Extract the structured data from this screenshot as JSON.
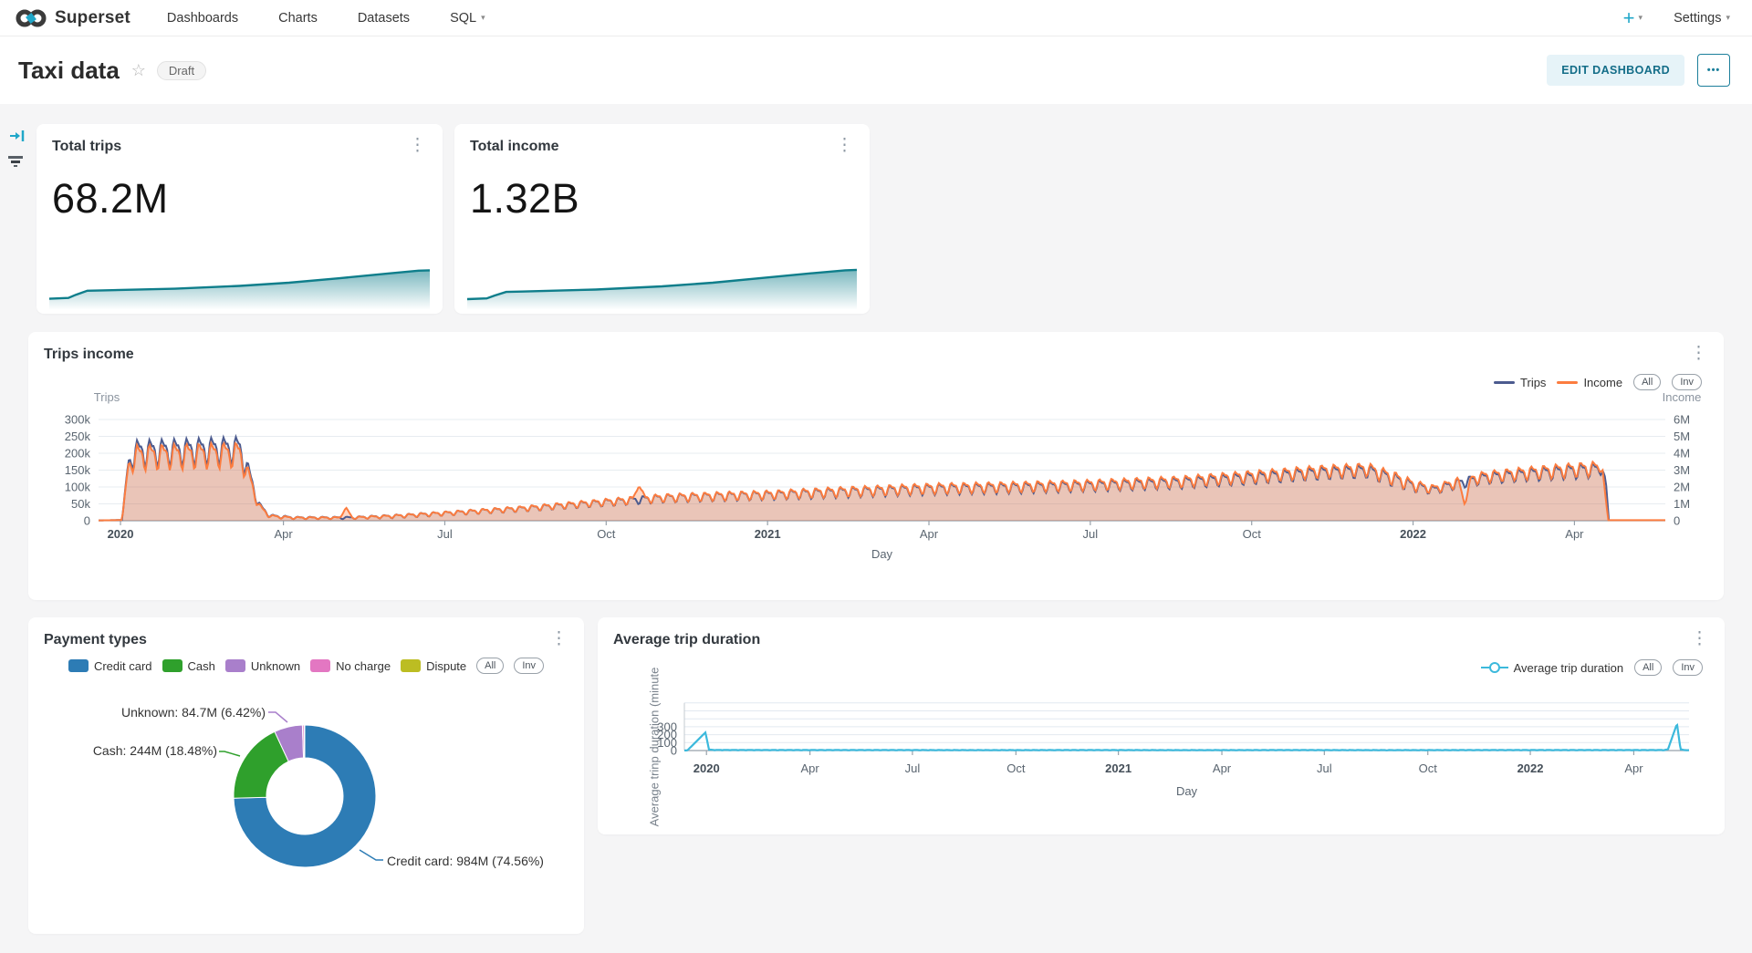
{
  "nav": {
    "brand": "Superset",
    "items": [
      {
        "label": "Dashboards"
      },
      {
        "label": "Charts"
      },
      {
        "label": "Datasets"
      },
      {
        "label": "SQL",
        "caret": true
      }
    ],
    "plus_label": "+",
    "settings_label": "Settings"
  },
  "header": {
    "title": "Taxi data",
    "draft_badge": "Draft",
    "edit_button": "EDIT DASHBOARD"
  },
  "icons": {
    "kebab": "⋮",
    "star": "☆",
    "caret": "▾",
    "more_dots": "•••"
  },
  "colors": {
    "accent": "#20a7c9",
    "trips_line": "#4c5b8f",
    "income_line": "#fc7c3f",
    "spark_teal": "#0f7e8b",
    "avg_line": "#3cb9dc",
    "board_bg": "#f5f5f6"
  },
  "chart_data": [
    {
      "id": "total-trips",
      "type": "area",
      "title": "Total trips",
      "value": "68.2M",
      "color": "#0f7e8b",
      "points": [
        [
          0,
          0.1
        ],
        [
          0.05,
          0.12
        ],
        [
          0.07,
          0.2
        ],
        [
          0.1,
          0.3
        ],
        [
          0.14,
          0.31
        ],
        [
          0.33,
          0.35
        ],
        [
          0.5,
          0.42
        ],
        [
          0.63,
          0.5
        ],
        [
          0.76,
          0.61
        ],
        [
          0.89,
          0.73
        ],
        [
          0.97,
          0.8
        ],
        [
          1,
          0.81
        ]
      ]
    },
    {
      "id": "total-income",
      "type": "area",
      "title": "Total income",
      "value": "1.32B",
      "color": "#0f7e8b",
      "points": [
        [
          0,
          0.09
        ],
        [
          0.05,
          0.11
        ],
        [
          0.07,
          0.18
        ],
        [
          0.1,
          0.27
        ],
        [
          0.14,
          0.28
        ],
        [
          0.33,
          0.33
        ],
        [
          0.5,
          0.41
        ],
        [
          0.63,
          0.5
        ],
        [
          0.76,
          0.62
        ],
        [
          0.89,
          0.74
        ],
        [
          0.97,
          0.81
        ],
        [
          1,
          0.82
        ]
      ]
    },
    {
      "id": "trips-income",
      "type": "line",
      "title": "Trips income",
      "xlabel": "Day",
      "x_ticks": [
        {
          "label": "2020",
          "p": 0.014,
          "bold": true
        },
        {
          "label": "Apr",
          "p": 0.118
        },
        {
          "label": "Jul",
          "p": 0.221
        },
        {
          "label": "Oct",
          "p": 0.324
        },
        {
          "label": "2021",
          "p": 0.427,
          "bold": true
        },
        {
          "label": "Apr",
          "p": 0.53
        },
        {
          "label": "Jul",
          "p": 0.633
        },
        {
          "label": "Oct",
          "p": 0.736
        },
        {
          "label": "2022",
          "p": 0.839,
          "bold": true
        },
        {
          "label": "Apr",
          "p": 0.942
        }
      ],
      "y_left": {
        "name": "Trips",
        "max": 300,
        "ticks": [
          "300k",
          "250k",
          "200k",
          "150k",
          "100k",
          "50k",
          "0"
        ]
      },
      "y_right": {
        "name": "Income",
        "max": 6,
        "ticks": [
          "6M",
          "5M",
          "4M",
          "3M",
          "2M",
          "1M",
          "0"
        ]
      },
      "legend": [
        {
          "label": "Trips",
          "color": "#4c5b8f"
        },
        {
          "label": "Income",
          "color": "#fc7c3f"
        }
      ],
      "buttons": [
        "All",
        "Inv"
      ],
      "osc_freq": 127,
      "series": [
        {
          "name": "Trips",
          "axis": "left",
          "color": "#4c5b8f",
          "fill": "rgba(76,91,143,0.16)",
          "end": 0.964,
          "keypoints": [
            [
              0,
              1,
              0
            ],
            [
              0.015,
              2,
              0
            ],
            [
              0.019,
              170,
              20
            ],
            [
              0.024,
              205,
              45
            ],
            [
              0.09,
              215,
              45
            ],
            [
              0.096,
              140,
              30
            ],
            [
              0.103,
              40,
              15
            ],
            [
              0.11,
              14,
              6
            ],
            [
              0.125,
              9,
              4
            ],
            [
              0.16,
              9,
              4
            ],
            [
              0.19,
              14,
              6
            ],
            [
              0.22,
              22,
              7
            ],
            [
              0.27,
              36,
              9
            ],
            [
              0.323,
              55,
              12
            ],
            [
              0.36,
              68,
              14
            ],
            [
              0.4,
              74,
              15
            ],
            [
              0.427,
              77,
              15
            ],
            [
              0.47,
              85,
              17
            ],
            [
              0.53,
              95,
              18
            ],
            [
              0.59,
              100,
              18
            ],
            [
              0.632,
              105,
              18
            ],
            [
              0.69,
              114,
              19
            ],
            [
              0.735,
              128,
              20
            ],
            [
              0.78,
              143,
              21
            ],
            [
              0.81,
              149,
              22
            ],
            [
              0.828,
              122,
              24
            ],
            [
              0.84,
              103,
              18
            ],
            [
              0.852,
              92,
              14
            ],
            [
              0.868,
              112,
              17
            ],
            [
              0.885,
              128,
              19
            ],
            [
              0.91,
              138,
              21
            ],
            [
              0.941,
              148,
              24
            ],
            [
              0.956,
              152,
              24
            ],
            [
              0.96,
              150,
              10
            ],
            [
              0.962,
              120,
              0
            ],
            [
              0.964,
              0,
              0
            ]
          ]
        },
        {
          "name": "Income",
          "axis": "right",
          "color": "#fc7c3f",
          "fill": "rgba(252,124,63,0.30)",
          "end": 1.0,
          "keypoints": [
            [
              0,
              0.02,
              0
            ],
            [
              0.015,
              0.04,
              0
            ],
            [
              0.019,
              3.2,
              0.4
            ],
            [
              0.024,
              3.85,
              0.85
            ],
            [
              0.09,
              4.0,
              0.85
            ],
            [
              0.096,
              2.6,
              0.55
            ],
            [
              0.103,
              0.75,
              0.28
            ],
            [
              0.11,
              0.26,
              0.11
            ],
            [
              0.125,
              0.17,
              0.07
            ],
            [
              0.16,
              0.17,
              0.07
            ],
            [
              0.19,
              0.28,
              0.11
            ],
            [
              0.22,
              0.44,
              0.14
            ],
            [
              0.27,
              0.73,
              0.18
            ],
            [
              0.323,
              1.12,
              0.24
            ],
            [
              0.36,
              1.38,
              0.28
            ],
            [
              0.4,
              1.5,
              0.3
            ],
            [
              0.427,
              1.57,
              0.3
            ],
            [
              0.47,
              1.74,
              0.34
            ],
            [
              0.53,
              1.95,
              0.36
            ],
            [
              0.59,
              2.06,
              0.36
            ],
            [
              0.632,
              2.16,
              0.37
            ],
            [
              0.69,
              2.36,
              0.39
            ],
            [
              0.735,
              2.66,
              0.41
            ],
            [
              0.78,
              2.97,
              0.43
            ],
            [
              0.81,
              3.09,
              0.45
            ],
            [
              0.828,
              2.52,
              0.49
            ],
            [
              0.84,
              2.12,
              0.37
            ],
            [
              0.852,
              1.9,
              0.29
            ],
            [
              0.868,
              2.31,
              0.35
            ],
            [
              0.885,
              2.65,
              0.39
            ],
            [
              0.91,
              2.86,
              0.43
            ],
            [
              0.941,
              3.06,
              0.49
            ],
            [
              0.956,
              3.14,
              0.49
            ],
            [
              0.96,
              3.0,
              0
            ],
            [
              0.9635,
              0.03,
              0
            ],
            [
              1,
              0.03,
              0
            ]
          ],
          "spikes": [
            [
              0.158,
              0.78,
              0.004
            ],
            [
              0.345,
              2.1,
              0.004
            ],
            [
              0.872,
              0.95,
              0.004
            ]
          ]
        }
      ]
    },
    {
      "id": "payment-types",
      "type": "pie",
      "title": "Payment types",
      "buttons": [
        "All",
        "Inv"
      ],
      "slices": [
        {
          "label": "Credit card",
          "value": "984M",
          "pct": 74.56,
          "color": "#2d7cb5",
          "callout": "Credit card: 984M (74.56%)"
        },
        {
          "label": "Cash",
          "value": "244M",
          "pct": 18.48,
          "color": "#2fa02c",
          "callout": "Cash: 244M (18.48%)"
        },
        {
          "label": "Unknown",
          "value": "84.7M",
          "pct": 6.42,
          "color": "#a97fcb",
          "callout": "Unknown: 84.7M (6.42%)"
        },
        {
          "label": "No charge",
          "pct": 0.4,
          "color": "#e377c2"
        },
        {
          "label": "Dispute",
          "pct": 0.14,
          "color": "#bcbd22"
        }
      ]
    },
    {
      "id": "avg-trip-duration",
      "type": "line",
      "title": "Average trip duration",
      "xlabel": "Day",
      "ylabel": "Average trinp duration (minute",
      "x_ticks": [
        {
          "label": "2020",
          "p": 0.022,
          "bold": true
        },
        {
          "label": "Apr",
          "p": 0.125
        },
        {
          "label": "Jul",
          "p": 0.227
        },
        {
          "label": "Oct",
          "p": 0.33
        },
        {
          "label": "2021",
          "p": 0.432,
          "bold": true
        },
        {
          "label": "Apr",
          "p": 0.535
        },
        {
          "label": "Jul",
          "p": 0.637
        },
        {
          "label": "Oct",
          "p": 0.74
        },
        {
          "label": "2022",
          "p": 0.842,
          "bold": true
        },
        {
          "label": "Apr",
          "p": 0.945
        }
      ],
      "y_ticks": [
        "0",
        "100",
        "200",
        "300"
      ],
      "legend": [
        {
          "label": "Average trip duration",
          "color": "#3cb9dc"
        }
      ],
      "buttons": [
        "All",
        "Inv"
      ],
      "osc_freq": 127,
      "series": [
        {
          "name": "Average trip duration",
          "color": "#3cb9dc",
          "keypoints": [
            [
              0,
              1,
              0
            ],
            [
              0.003,
              2,
              0
            ],
            [
              0.021,
              228,
              0
            ],
            [
              0.0245,
              12,
              0
            ],
            [
              0.03,
              7,
              2
            ],
            [
              0.1,
              6,
              2
            ],
            [
              0.2,
              6,
              2
            ],
            [
              0.3,
              5,
              2
            ],
            [
              0.4,
              6,
              2
            ],
            [
              0.5,
              5,
              2
            ],
            [
              0.6,
              6,
              2
            ],
            [
              0.7,
              5,
              2
            ],
            [
              0.8,
              6,
              2
            ],
            [
              0.9,
              6,
              2
            ],
            [
              0.955,
              6,
              2
            ],
            [
              0.975,
              6,
              2
            ],
            [
              0.979,
              15,
              0
            ],
            [
              0.985,
              230,
              0
            ],
            [
              0.988,
              338,
              0
            ],
            [
              0.9915,
              15,
              0
            ],
            [
              0.995,
              6,
              1
            ],
            [
              1,
              5,
              1
            ]
          ]
        }
      ]
    }
  ]
}
